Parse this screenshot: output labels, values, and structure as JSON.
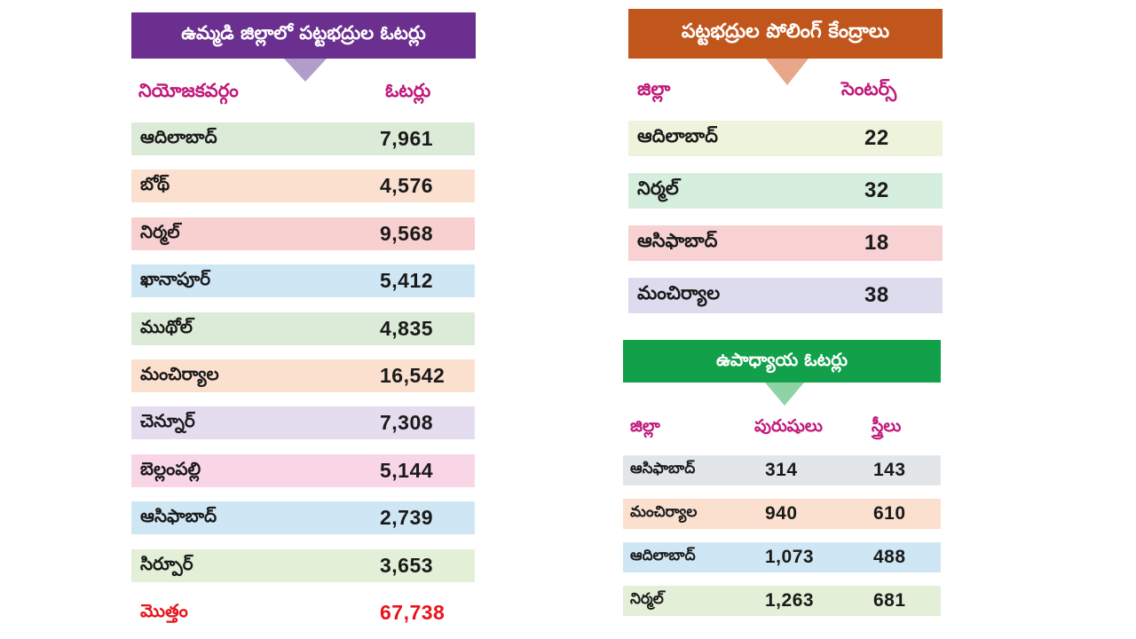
{
  "left_table": {
    "title": "ఉమ్మడి జిల్లాలో పట్టభద్రుల ఓటర్లు",
    "header_color": "#6b2f90",
    "columns": [
      "నియోజకవర్గం",
      "ఓటర్లు"
    ],
    "rows": [
      {
        "name": "ఆదిలాబాద్",
        "value": "7,961",
        "color": "#dcebd7"
      },
      {
        "name": "బోథ్",
        "value": "4,576",
        "color": "#fbe0cf"
      },
      {
        "name": "నిర్మల్",
        "value": "9,568",
        "color": "#f8d0d0"
      },
      {
        "name": "ఖానాపూర్",
        "value": "5,412",
        "color": "#cfe7f5"
      },
      {
        "name": "ముథోల్",
        "value": "4,835",
        "color": "#dcebd7"
      },
      {
        "name": "మంచిర్యాల",
        "value": "16,542",
        "color": "#fbe0cf"
      },
      {
        "name": "చెన్నూర్",
        "value": "7,308",
        "color": "#e4dcef"
      },
      {
        "name": "బెల్లంపల్లి",
        "value": "5,144",
        "color": "#f8d6e6"
      },
      {
        "name": "ఆసిఫాబాద్",
        "value": "2,739",
        "color": "#cfe7f5"
      },
      {
        "name": "సిర్పూర్",
        "value": "3,653",
        "color": "#e3efd7"
      }
    ],
    "total": {
      "name": "మొత్తం",
      "value": "67,738",
      "color": "#ffffff"
    }
  },
  "polling_table": {
    "title": "పట్టభద్రుల పోలింగ్ కేంద్రాలు",
    "header_color": "#c1561d",
    "columns": [
      "జిల్లా",
      "సెంటర్స్"
    ],
    "rows": [
      {
        "name": "ఆదిలాబాద్",
        "value": "22",
        "color": "#eef4dc"
      },
      {
        "name": "నిర్మల్",
        "value": "32",
        "color": "#d6eedd"
      },
      {
        "name": "ఆసిఫాబాద్",
        "value": "18",
        "color": "#f8d2d2"
      },
      {
        "name": "మంచిర్యాల",
        "value": "38",
        "color": "#dcdcee"
      }
    ]
  },
  "teacher_table": {
    "title": "ఉపాధ్యాయ ఓటర్లు",
    "header_color": "#13a04a",
    "columns": [
      "జిల్లా",
      "పురుషులు",
      "స్త్రీలు"
    ],
    "rows": [
      {
        "name": "ఆసిఫాబాద్",
        "men": "314",
        "women": "143",
        "color": "#e3e6e8"
      },
      {
        "name": "మంచిర్యాల",
        "men": "940",
        "women": "610",
        "color": "#fbe0cf"
      },
      {
        "name": "ఆదిలాబాద్",
        "men": "1,073",
        "women": "488",
        "color": "#cfe7f5"
      },
      {
        "name": "నిర్మల్",
        "men": "1,263",
        "women": "681",
        "color": "#e3efd7"
      }
    ]
  }
}
